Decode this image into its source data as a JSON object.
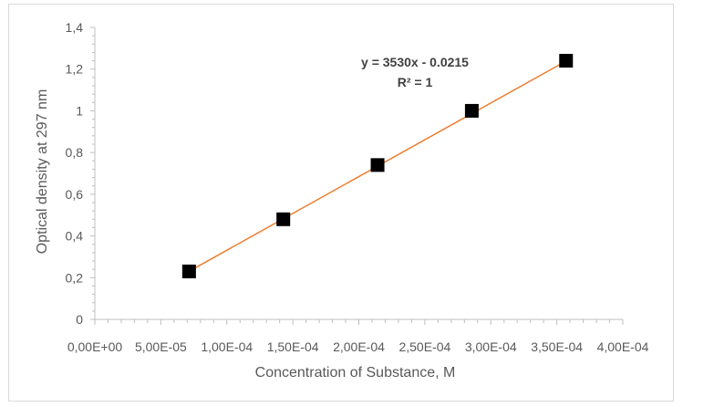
{
  "chart_data": {
    "type": "scatter",
    "title": "",
    "xlabel": "Concentration of Substance, M",
    "ylabel": "Optical density at 297 nm",
    "xlim": [
      0,
      0.0004
    ],
    "ylim": [
      0,
      1.4
    ],
    "x_ticks": [
      0,
      5e-05,
      0.0001,
      0.00015,
      0.0002,
      0.00025,
      0.0003,
      0.00035,
      0.0004
    ],
    "x_tick_labels": [
      "0,00E+00",
      "5,00E-05",
      "1,00E-04",
      "1,50E-04",
      "2,00E-04",
      "2,50E-04",
      "3,00E-04",
      "3,50E-04",
      "4,00E-04"
    ],
    "y_ticks": [
      0,
      0.2,
      0.4,
      0.6,
      0.8,
      1,
      1.2,
      1.4
    ],
    "y_tick_labels": [
      "0",
      "0,2",
      "0,4",
      "0,6",
      "0,8",
      "1",
      "1,2",
      "1,4"
    ],
    "grid": false,
    "legend": "none",
    "series": [
      {
        "marker": "square",
        "color": "#000000",
        "x": [
          7.14e-05,
          0.0001428,
          0.0002142,
          0.0002856,
          0.000357
        ],
        "y": [
          0.23,
          0.48,
          0.74,
          1.0,
          1.24
        ]
      }
    ],
    "trendline": {
      "type": "linear",
      "slope": 3530,
      "intercept": -0.0215,
      "x_range": [
        7.14e-05,
        0.000357
      ],
      "color": "#ED7D31",
      "equation_label": "y = 3530x - 0.0215",
      "r2_label": "R² = 1"
    }
  }
}
